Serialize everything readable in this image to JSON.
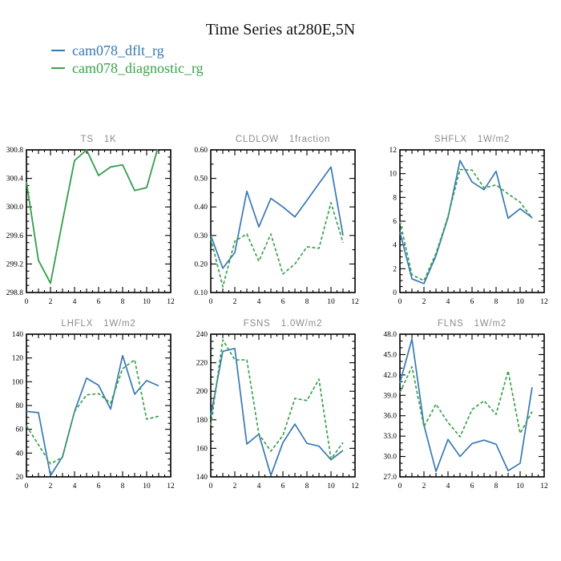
{
  "header": {
    "title": "Time Series at280E,5N"
  },
  "legend": {
    "items": [
      {
        "label": "cam078_dflt_rg",
        "color": "#3878b4"
      },
      {
        "label": "cam078_diagnostic_rg",
        "color": "#3aa24a"
      }
    ]
  },
  "chart_data": [
    {
      "type": "line",
      "title": "TS",
      "units": "1K",
      "x": [
        0,
        1,
        2,
        3,
        4,
        5,
        6,
        7,
        8,
        9,
        10,
        11
      ],
      "xlim": [
        0,
        12
      ],
      "xtick_step": 2,
      "ylim": [
        298.8,
        300.8
      ],
      "ytick_step": 0.4,
      "y_decimals": 1,
      "y_minor_divs": 4,
      "series": [
        {
          "name": "cam078_dflt_rg",
          "dashed": false,
          "values": [
            300.35,
            299.25,
            298.93,
            299.8,
            300.65,
            300.8,
            300.44,
            300.56,
            300.59,
            300.23,
            300.27,
            300.87
          ]
        },
        {
          "name": "cam078_diagnostic_rg",
          "dashed": false,
          "values": [
            300.35,
            299.25,
            298.93,
            299.8,
            300.65,
            300.8,
            300.44,
            300.56,
            300.59,
            300.23,
            300.27,
            300.87
          ]
        }
      ]
    },
    {
      "type": "line",
      "title": "CLDLOW",
      "units": "1fraction",
      "x": [
        0,
        1,
        2,
        3,
        4,
        5,
        6,
        7,
        8,
        9,
        10,
        11
      ],
      "xlim": [
        0,
        12
      ],
      "xtick_step": 2,
      "ylim": [
        0.1,
        0.6
      ],
      "ytick_step": 0.1,
      "y_decimals": 2,
      "y_minor_divs": 2,
      "series": [
        {
          "name": "cam078_dflt_rg",
          "dashed": false,
          "values": [
            0.3,
            0.185,
            0.24,
            0.455,
            0.33,
            0.43,
            0.4,
            0.365,
            0.423,
            0.482,
            0.54,
            0.3
          ]
        },
        {
          "name": "cam078_diagnostic_rg",
          "dashed": true,
          "values": [
            0.29,
            0.12,
            0.28,
            0.305,
            0.21,
            0.305,
            0.165,
            0.2,
            0.26,
            0.255,
            0.415,
            0.275
          ]
        }
      ]
    },
    {
      "type": "line",
      "title": "SHFLX",
      "units": "1W/m2",
      "x": [
        0,
        1,
        2,
        3,
        4,
        5,
        6,
        7,
        8,
        9,
        10,
        11
      ],
      "xlim": [
        0,
        12
      ],
      "xtick_step": 2,
      "ylim": [
        0,
        12
      ],
      "ytick_step": 2,
      "y_decimals": 0,
      "y_minor_divs": 4,
      "series": [
        {
          "name": "cam078_dflt_rg",
          "dashed": false,
          "values": [
            5.1,
            1.15,
            0.75,
            3.1,
            6.3,
            11.1,
            9.3,
            8.65,
            10.2,
            6.25,
            7.05,
            6.3
          ]
        },
        {
          "name": "cam078_diagnostic_rg",
          "dashed": true,
          "values": [
            6.0,
            1.5,
            1.0,
            3.3,
            6.4,
            10.35,
            10.3,
            8.8,
            9.05,
            8.3,
            7.6,
            6.25
          ]
        }
      ]
    },
    {
      "type": "line",
      "title": "LHFLX",
      "units": "1W/m2",
      "x": [
        0,
        1,
        2,
        3,
        4,
        5,
        6,
        7,
        8,
        9,
        10,
        11
      ],
      "xlim": [
        0,
        12
      ],
      "xtick_step": 2,
      "ylim": [
        20,
        140
      ],
      "ytick_step": 20,
      "y_decimals": 0,
      "y_minor_divs": 4,
      "series": [
        {
          "name": "cam078_dflt_rg",
          "dashed": false,
          "values": [
            75,
            74,
            21,
            37,
            75,
            103,
            97,
            77,
            122,
            89.5,
            101,
            96.5
          ]
        },
        {
          "name": "cam078_diagnostic_rg",
          "dashed": true,
          "values": [
            63,
            47,
            31,
            36.5,
            75,
            89,
            90,
            82,
            111,
            118.5,
            68.5,
            71
          ]
        }
      ]
    },
    {
      "type": "line",
      "title": "FSNS",
      "units": "1.0W/m2",
      "x": [
        0,
        1,
        2,
        3,
        4,
        5,
        6,
        7,
        8,
        9,
        10,
        11
      ],
      "xlim": [
        0,
        12
      ],
      "xtick_step": 2,
      "ylim": [
        140,
        240
      ],
      "ytick_step": 20,
      "y_decimals": 0,
      "y_minor_divs": 4,
      "series": [
        {
          "name": "cam078_dflt_rg",
          "dashed": false,
          "values": [
            183,
            228,
            230,
            163,
            170,
            141,
            164,
            177,
            163.5,
            161.5,
            152,
            158.5
          ]
        },
        {
          "name": "cam078_diagnostic_rg",
          "dashed": true,
          "values": [
            176,
            236,
            222,
            222,
            170,
            158,
            169,
            195,
            193.5,
            208.5,
            152.5,
            164
          ]
        }
      ]
    },
    {
      "type": "line",
      "title": "FLNS",
      "units": "1W/m2",
      "x": [
        0,
        1,
        2,
        3,
        4,
        5,
        6,
        7,
        8,
        9,
        10,
        11
      ],
      "xlim": [
        0,
        12
      ],
      "xtick_step": 2,
      "ylim": [
        27.0,
        48.0
      ],
      "ytick_step": 3.0,
      "y_decimals": 1,
      "y_minor_divs": 3,
      "series": [
        {
          "name": "cam078_dflt_rg",
          "dashed": false,
          "values": [
            40.8,
            47.3,
            34.6,
            27.8,
            32.5,
            30.0,
            31.9,
            32.4,
            31.8,
            27.9,
            29.0,
            40.2
          ]
        },
        {
          "name": "cam078_diagnostic_rg",
          "dashed": true,
          "values": [
            39.4,
            43.2,
            34.4,
            37.7,
            35.0,
            32.9,
            36.9,
            38.2,
            36.2,
            42.6,
            33.4,
            36.6
          ]
        }
      ]
    }
  ]
}
